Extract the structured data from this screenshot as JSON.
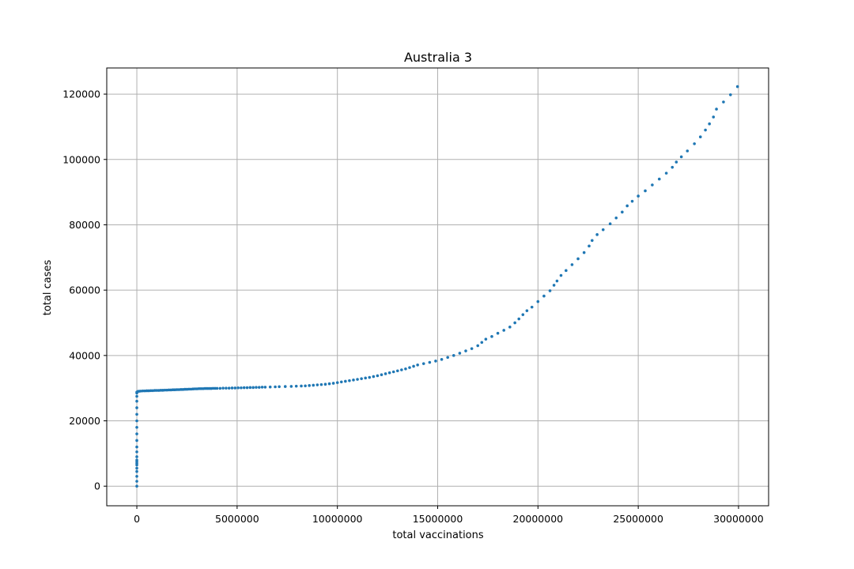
{
  "chart_data": {
    "type": "scatter",
    "title": "Australia 3",
    "xlabel": "total vaccinations",
    "ylabel": "total cases",
    "xlim": [
      -1500000,
      31500000
    ],
    "ylim": [
      -6000,
      128000
    ],
    "xticks": [
      0,
      5000000,
      10000000,
      15000000,
      20000000,
      25000000,
      30000000
    ],
    "xtick_labels": [
      "0",
      "5000000",
      "10000000",
      "15000000",
      "20000000",
      "25000000",
      "30000000"
    ],
    "yticks": [
      0,
      20000,
      40000,
      60000,
      80000,
      100000,
      120000
    ],
    "ytick_labels": [
      "0",
      "20000",
      "40000",
      "60000",
      "80000",
      "100000",
      "120000"
    ],
    "grid": true,
    "marker_color": "#1f77b4",
    "series": [
      {
        "points": [
          [
            0,
            0
          ],
          [
            0,
            1500
          ],
          [
            0,
            3000
          ],
          [
            0,
            4500
          ],
          [
            0,
            5500
          ],
          [
            0,
            6500
          ],
          [
            0,
            7000
          ],
          [
            0,
            7500
          ],
          [
            0,
            8000
          ],
          [
            0,
            9000
          ],
          [
            0,
            10500
          ],
          [
            0,
            12000
          ],
          [
            0,
            14000
          ],
          [
            0,
            16000
          ],
          [
            0,
            18000
          ],
          [
            0,
            20000
          ],
          [
            0,
            22000
          ],
          [
            0,
            24000
          ],
          [
            0,
            26000
          ],
          [
            0,
            27500
          ],
          [
            0,
            28500
          ],
          [
            0,
            28800
          ],
          [
            50000,
            29000
          ],
          [
            120000,
            29050
          ],
          [
            200000,
            29100
          ],
          [
            300000,
            29150
          ],
          [
            400000,
            29150
          ],
          [
            500000,
            29200
          ],
          [
            600000,
            29200
          ],
          [
            700000,
            29250
          ],
          [
            800000,
            29250
          ],
          [
            900000,
            29300
          ],
          [
            1000000,
            29300
          ],
          [
            1100000,
            29300
          ],
          [
            1200000,
            29350
          ],
          [
            1300000,
            29350
          ],
          [
            1400000,
            29400
          ],
          [
            1500000,
            29400
          ],
          [
            1600000,
            29450
          ],
          [
            1700000,
            29450
          ],
          [
            1800000,
            29500
          ],
          [
            1900000,
            29500
          ],
          [
            2000000,
            29550
          ],
          [
            2100000,
            29550
          ],
          [
            2200000,
            29600
          ],
          [
            2300000,
            29600
          ],
          [
            2400000,
            29650
          ],
          [
            2500000,
            29650
          ],
          [
            2600000,
            29700
          ],
          [
            2700000,
            29700
          ],
          [
            2800000,
            29750
          ],
          [
            2900000,
            29800
          ],
          [
            3000000,
            29800
          ],
          [
            3100000,
            29850
          ],
          [
            3200000,
            29850
          ],
          [
            3300000,
            29850
          ],
          [
            3400000,
            29900
          ],
          [
            3500000,
            29900
          ],
          [
            3600000,
            29900
          ],
          [
            3700000,
            29900
          ],
          [
            3800000,
            29950
          ],
          [
            3900000,
            29950
          ],
          [
            4000000,
            29950
          ],
          [
            4150000,
            29950
          ],
          [
            4300000,
            30000
          ],
          [
            4450000,
            30000
          ],
          [
            4600000,
            30000
          ],
          [
            4750000,
            30050
          ],
          [
            4900000,
            30050
          ],
          [
            5050000,
            30100
          ],
          [
            5200000,
            30100
          ],
          [
            5350000,
            30150
          ],
          [
            5500000,
            30150
          ],
          [
            5650000,
            30200
          ],
          [
            5800000,
            30200
          ],
          [
            5950000,
            30250
          ],
          [
            6100000,
            30250
          ],
          [
            6250000,
            30300
          ],
          [
            6400000,
            30300
          ],
          [
            6650000,
            30350
          ],
          [
            6900000,
            30400
          ],
          [
            7100000,
            30450
          ],
          [
            7400000,
            30500
          ],
          [
            7700000,
            30550
          ],
          [
            7950000,
            30600
          ],
          [
            8200000,
            30650
          ],
          [
            8400000,
            30700
          ],
          [
            8600000,
            30800
          ],
          [
            8800000,
            30900
          ],
          [
            9000000,
            31000
          ],
          [
            9200000,
            31100
          ],
          [
            9400000,
            31200
          ],
          [
            9600000,
            31350
          ],
          [
            9800000,
            31500
          ],
          [
            10000000,
            31700
          ],
          [
            10200000,
            31900
          ],
          [
            10400000,
            32100
          ],
          [
            10600000,
            32300
          ],
          [
            10800000,
            32500
          ],
          [
            11000000,
            32700
          ],
          [
            11200000,
            32900
          ],
          [
            11400000,
            33100
          ],
          [
            11600000,
            33300
          ],
          [
            11800000,
            33550
          ],
          [
            12000000,
            33800
          ],
          [
            12200000,
            34100
          ],
          [
            12400000,
            34400
          ],
          [
            12600000,
            34700
          ],
          [
            12800000,
            35000
          ],
          [
            13000000,
            35300
          ],
          [
            13200000,
            35600
          ],
          [
            13400000,
            35900
          ],
          [
            13600000,
            36300
          ],
          [
            13800000,
            36700
          ],
          [
            14000000,
            37100
          ],
          [
            14300000,
            37500
          ],
          [
            14600000,
            37900
          ],
          [
            14900000,
            38300
          ],
          [
            15200000,
            38800
          ],
          [
            15500000,
            39400
          ],
          [
            15800000,
            40000
          ],
          [
            16100000,
            40700
          ],
          [
            16400000,
            41400
          ],
          [
            16700000,
            42100
          ],
          [
            17000000,
            43000
          ],
          [
            17200000,
            44000
          ],
          [
            17400000,
            45000
          ],
          [
            17700000,
            45800
          ],
          [
            18000000,
            46800
          ],
          [
            18300000,
            47700
          ],
          [
            18600000,
            48700
          ],
          [
            18850000,
            50000
          ],
          [
            19050000,
            51200
          ],
          [
            19250000,
            52500
          ],
          [
            19450000,
            53700
          ],
          [
            19700000,
            54800
          ],
          [
            20000000,
            56500
          ],
          [
            20300000,
            58200
          ],
          [
            20600000,
            59800
          ],
          [
            20800000,
            61500
          ],
          [
            20950000,
            62800
          ],
          [
            21150000,
            64500
          ],
          [
            21400000,
            66000
          ],
          [
            21700000,
            67800
          ],
          [
            22000000,
            69600
          ],
          [
            22300000,
            71500
          ],
          [
            22550000,
            73500
          ],
          [
            22700000,
            75200
          ],
          [
            22950000,
            77000
          ],
          [
            23250000,
            78500
          ],
          [
            23600000,
            80300
          ],
          [
            23900000,
            82100
          ],
          [
            24200000,
            83900
          ],
          [
            24450000,
            85800
          ],
          [
            24700000,
            87200
          ],
          [
            25000000,
            88800
          ],
          [
            25350000,
            90400
          ],
          [
            25700000,
            92200
          ],
          [
            26050000,
            94000
          ],
          [
            26400000,
            95800
          ],
          [
            26700000,
            97600
          ],
          [
            26900000,
            99200
          ],
          [
            27150000,
            100800
          ],
          [
            27450000,
            102600
          ],
          [
            27800000,
            104800
          ],
          [
            28100000,
            106900
          ],
          [
            28350000,
            109000
          ],
          [
            28550000,
            110900
          ],
          [
            28750000,
            113000
          ],
          [
            28900000,
            115400
          ],
          [
            29250000,
            117600
          ],
          [
            29600000,
            119800
          ],
          [
            29950000,
            122300
          ]
        ]
      }
    ]
  }
}
